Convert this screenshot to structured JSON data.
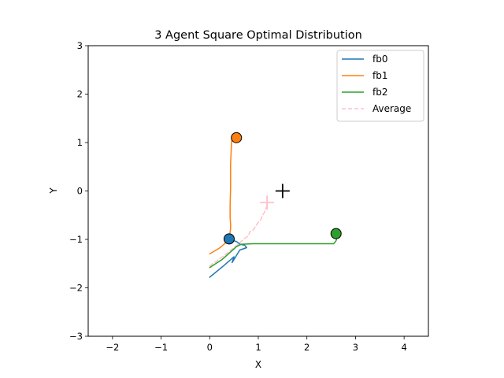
{
  "chart_data": {
    "type": "line",
    "title": "3 Agent Square Optimal Distribution",
    "xlabel": "X",
    "ylabel": "Y",
    "xlim": [
      -2.5,
      4.5
    ],
    "ylim": [
      -3,
      3
    ],
    "xticks": [
      -2,
      -1,
      0,
      1,
      2,
      3,
      4
    ],
    "yticks": [
      -3,
      -2,
      -1,
      0,
      1,
      2,
      3
    ],
    "xtick_labels": [
      "−2",
      "−1",
      "0",
      "1",
      "2",
      "3",
      "4"
    ],
    "ytick_labels": [
      "−3",
      "−2",
      "−1",
      "0",
      "1",
      "2",
      "3"
    ],
    "grid": false,
    "legend_position": "top-right",
    "series": [
      {
        "name": "fb0",
        "color": "#1f77b4",
        "style": "solid",
        "x": [
          0.0,
          0.28,
          0.5,
          0.46,
          0.62,
          0.76,
          0.72,
          0.62,
          0.56,
          0.48,
          0.4
        ],
        "y": [
          -1.78,
          -1.55,
          -1.36,
          -1.48,
          -1.22,
          -1.17,
          -1.12,
          -1.1,
          -1.05,
          -1.02,
          -0.99
        ]
      },
      {
        "name": "fb1",
        "color": "#ff7f0e",
        "style": "solid",
        "x": [
          0.0,
          0.2,
          0.34,
          0.41,
          0.43,
          0.43,
          0.42,
          0.42,
          0.43,
          0.43,
          0.45,
          0.52
        ],
        "y": [
          -1.3,
          -1.18,
          -1.06,
          -0.92,
          -0.78,
          -0.68,
          -0.55,
          -0.28,
          0.05,
          0.55,
          1.03,
          1.09
        ]
      },
      {
        "name": "fb2",
        "color": "#2ca02c",
        "style": "solid",
        "x": [
          0.0,
          0.25,
          0.45,
          0.55,
          0.65,
          0.9,
          1.5,
          2.0,
          2.55,
          2.6,
          2.62,
          2.6
        ],
        "y": [
          -1.58,
          -1.42,
          -1.24,
          -1.15,
          -1.1,
          -1.09,
          -1.09,
          -1.09,
          -1.09,
          -1.03,
          -0.96,
          -0.89
        ]
      },
      {
        "name": "Average",
        "color": "#ffc0cb",
        "style": "dashed",
        "x": [
          0.0,
          0.3,
          0.55,
          0.72,
          0.8,
          0.82,
          0.9,
          0.95,
          1.0,
          1.05,
          1.08,
          1.12,
          1.16,
          1.2
        ],
        "y": [
          -1.55,
          -1.33,
          -1.13,
          -0.98,
          -0.92,
          -0.85,
          -0.8,
          -0.72,
          -0.65,
          -0.6,
          -0.52,
          -0.45,
          -0.35,
          -0.25
        ]
      }
    ],
    "end_markers": [
      {
        "x": 0.4,
        "y": -0.99,
        "color": "#1f77b4"
      },
      {
        "x": 0.55,
        "y": 1.1,
        "color": "#ff7f0e"
      },
      {
        "x": 2.6,
        "y": -0.88,
        "color": "#2ca02c"
      }
    ],
    "plus_markers": [
      {
        "x": 1.5,
        "y": 0.0,
        "color": "#000000"
      },
      {
        "x": 1.18,
        "y": -0.24,
        "color": "#ffc0cb"
      }
    ]
  }
}
